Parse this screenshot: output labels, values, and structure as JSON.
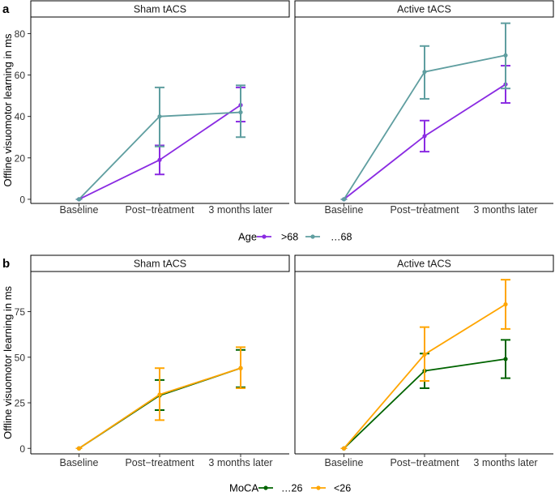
{
  "colors": {
    "age_over68": "#8A2BE2",
    "age_le68": "#5F9EA0",
    "moca_le26": "#006400",
    "moca_lt26": "#FFA500",
    "strip_fill": "#FFFFFF",
    "strip_border": "#000000",
    "axis": "#000000",
    "tick_text": "#333333"
  },
  "panels": [
    {
      "label": "a",
      "ylabel": "Offline visuomotor learning in ms",
      "legend_title": "Age",
      "ylim": [
        -2,
        88
      ],
      "yticks": [
        0,
        20,
        40,
        60,
        80
      ],
      "series_order": [
        "over68",
        "le68"
      ]
    },
    {
      "label": "b",
      "ylabel": "Offline visuomotor learning in ms",
      "legend_title": "MoCA",
      "ylim": [
        -3,
        97
      ],
      "yticks": [
        0,
        25,
        50,
        75
      ],
      "series_order": [
        "le26",
        "lt26"
      ]
    }
  ],
  "chart_data": [
    {
      "type": "line",
      "panel": "a",
      "facets": [
        "Sham tACS",
        "Active tACS"
      ],
      "categories": [
        "Baseline",
        "Post−treatment",
        "3 months later"
      ],
      "ylabel": "Offline visuomotor learning in ms",
      "legend_title": "Age",
      "ylim": [
        -2,
        88
      ],
      "series": [
        {
          "key": "over68",
          "name": ">68",
          "color": "#8A2BE2",
          "facet_values": {
            "Sham tACS": {
              "values": [
                0,
                19,
                45.5
              ],
              "lower": [
                0,
                12,
                37.5
              ],
              "upper": [
                0,
                26,
                54
              ]
            },
            "Active tACS": {
              "values": [
                0,
                30.5,
                55.5
              ],
              "lower": [
                0,
                23,
                46.5
              ],
              "upper": [
                0,
                38,
                64.5
              ]
            }
          }
        },
        {
          "key": "le68",
          "name": "…68",
          "color": "#5F9EA0",
          "facet_values": {
            "Sham tACS": {
              "values": [
                0,
                40,
                42
              ],
              "lower": [
                0,
                25.5,
                30
              ],
              "upper": [
                0,
                54,
                55
              ]
            },
            "Active tACS": {
              "values": [
                0,
                61.5,
                69.5
              ],
              "lower": [
                0,
                48.5,
                53.5
              ],
              "upper": [
                0,
                74,
                85
              ]
            }
          }
        }
      ]
    },
    {
      "type": "line",
      "panel": "b",
      "facets": [
        "Sham tACS",
        "Active tACS"
      ],
      "categories": [
        "Baseline",
        "Post−treatment",
        "3 months later"
      ],
      "ylabel": "Offline visuomotor learning in ms",
      "legend_title": "MoCA",
      "ylim": [
        -3,
        97
      ],
      "series": [
        {
          "key": "le26",
          "name": "…26",
          "color": "#006400",
          "facet_values": {
            "Sham tACS": {
              "values": [
                0,
                29,
                44
              ],
              "lower": [
                0,
                21,
                33.5
              ],
              "upper": [
                0,
                37.5,
                54
              ]
            },
            "Active tACS": {
              "values": [
                0,
                42.5,
                49
              ],
              "lower": [
                0,
                33,
                38.5
              ],
              "upper": [
                0,
                52,
                59.5
              ]
            }
          }
        },
        {
          "key": "lt26",
          "name": "<26",
          "color": "#FFA500",
          "facet_values": {
            "Sham tACS": {
              "values": [
                0,
                29.5,
                44
              ],
              "lower": [
                0,
                15.5,
                33
              ],
              "upper": [
                0,
                44,
                55.5
              ]
            },
            "Active tACS": {
              "values": [
                0,
                51.5,
                79
              ],
              "lower": [
                0,
                37,
                65.5
              ],
              "upper": [
                0,
                66.5,
                92.5
              ]
            }
          }
        }
      ]
    }
  ]
}
